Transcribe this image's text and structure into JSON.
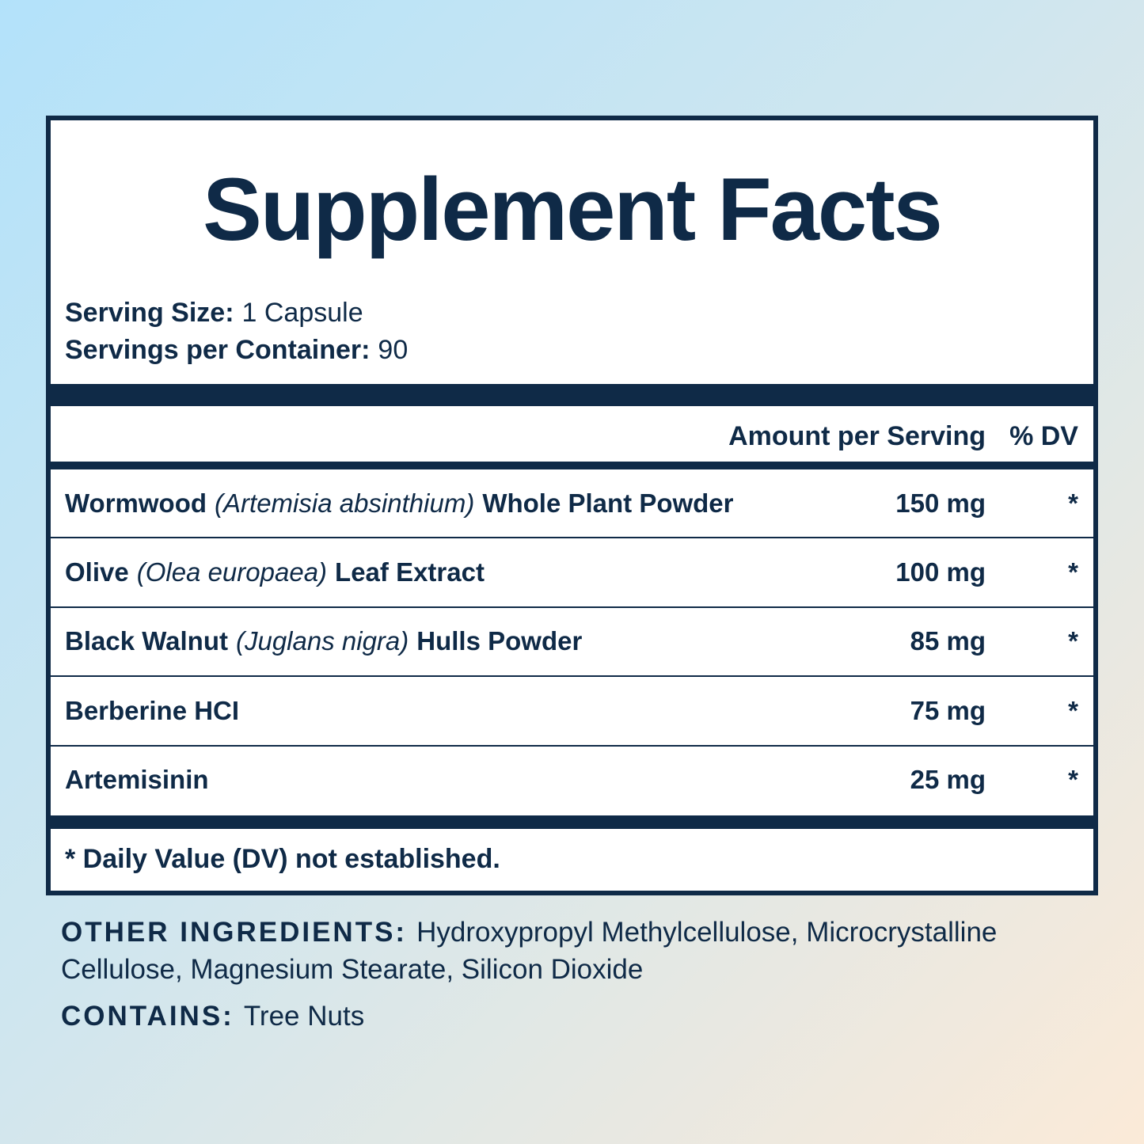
{
  "title": "Supplement Facts",
  "serving": {
    "size_label": "Serving Size:",
    "size": "1 Capsule",
    "servings_label": "Servings per Container:",
    "servings": "90"
  },
  "table": {
    "header": {
      "amount": "Amount per Serving",
      "dv": "% DV"
    },
    "rows": [
      {
        "name": "Wormwood",
        "latin": "(Artemisia absinthium)",
        "part": "Whole Plant Powder",
        "amount": "150 mg",
        "dv": "*"
      },
      {
        "name": "Olive",
        "latin": "(Olea europaea)",
        "part": "Leaf Extract",
        "amount": "100 mg",
        "dv": "*"
      },
      {
        "name": "Black Walnut",
        "latin": "(Juglans nigra)",
        "part": "Hulls Powder",
        "amount": "85 mg",
        "dv": "*"
      },
      {
        "name": "Berberine HCI",
        "amount": "75 mg",
        "dv": "*"
      },
      {
        "name": "Artemisinin",
        "amount": "25 mg",
        "dv": "*"
      }
    ]
  },
  "footnote": "* Daily Value (DV) not established.",
  "other_ingredients": {
    "label": "OTHER INGREDIENTS:",
    "text": "Hydroxypropyl Methylcellulose, Microcrystalline Cellulose, Magnesium Stearate, Silicon Dioxide"
  },
  "contains": {
    "label": "CONTAINS:",
    "text": "Tree Nuts"
  }
}
